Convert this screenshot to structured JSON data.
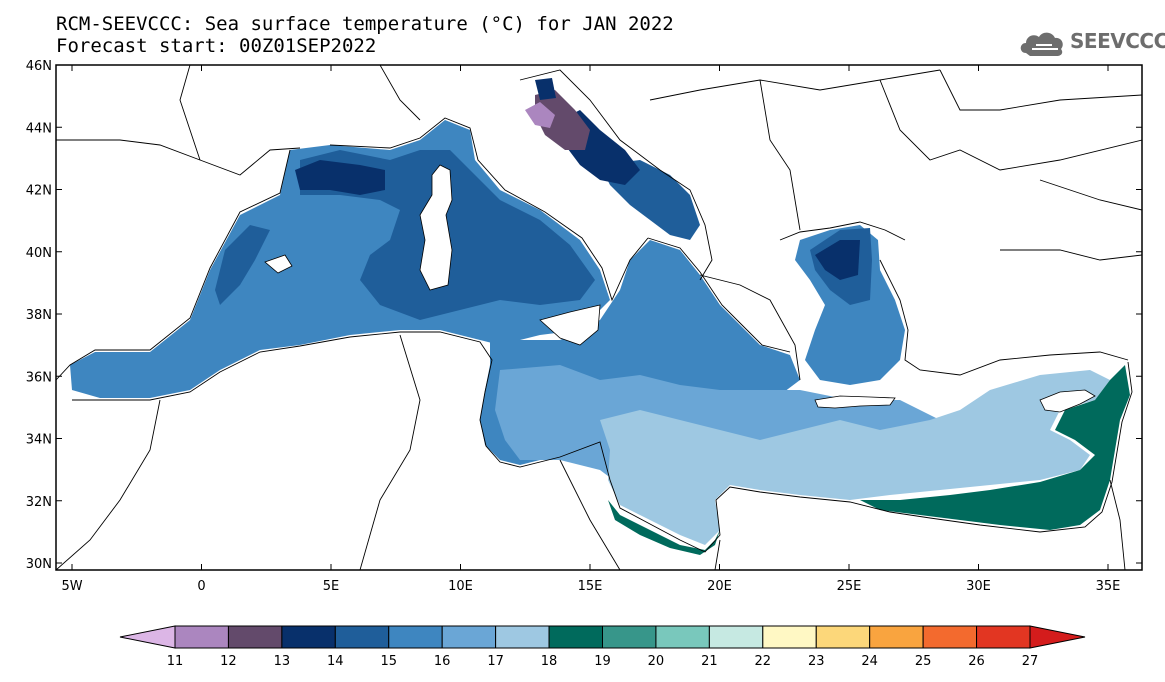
{
  "title": {
    "line1": "RCM-SEEVCCC: Sea surface temperature (°C) for JAN 2022",
    "line2": "Forecast start: 00Z01SEP2022"
  },
  "logo": {
    "text": "SEEVCCC",
    "icon": "cloud-logo-icon"
  },
  "map": {
    "lat_ticks": [
      "46N",
      "44N",
      "42N",
      "40N",
      "38N",
      "36N",
      "34N",
      "32N",
      "30N"
    ],
    "lon_ticks": [
      "5W",
      "0",
      "5E",
      "10E",
      "15E",
      "20E",
      "25E",
      "30E",
      "35E"
    ],
    "land_color": "#ffffff",
    "coast_color": "#000000"
  },
  "colorbar": {
    "labels": [
      "11",
      "12",
      "13",
      "14",
      "15",
      "16",
      "17",
      "18",
      "19",
      "20",
      "21",
      "22",
      "23",
      "24",
      "25",
      "26",
      "27"
    ],
    "colors": [
      "#dcb6e6",
      "#ab86bf",
      "#634a6b",
      "#08306b",
      "#1f5e9a",
      "#3e86c0",
      "#6aa6d6",
      "#9ec8e2",
      "#006a5c",
      "#37968a",
      "#79c8bc",
      "#c6e9e2",
      "#fff8c4",
      "#fcd77a",
      "#f9a43f",
      "#f36a2e",
      "#e23622",
      "#d41c1c"
    ]
  }
}
